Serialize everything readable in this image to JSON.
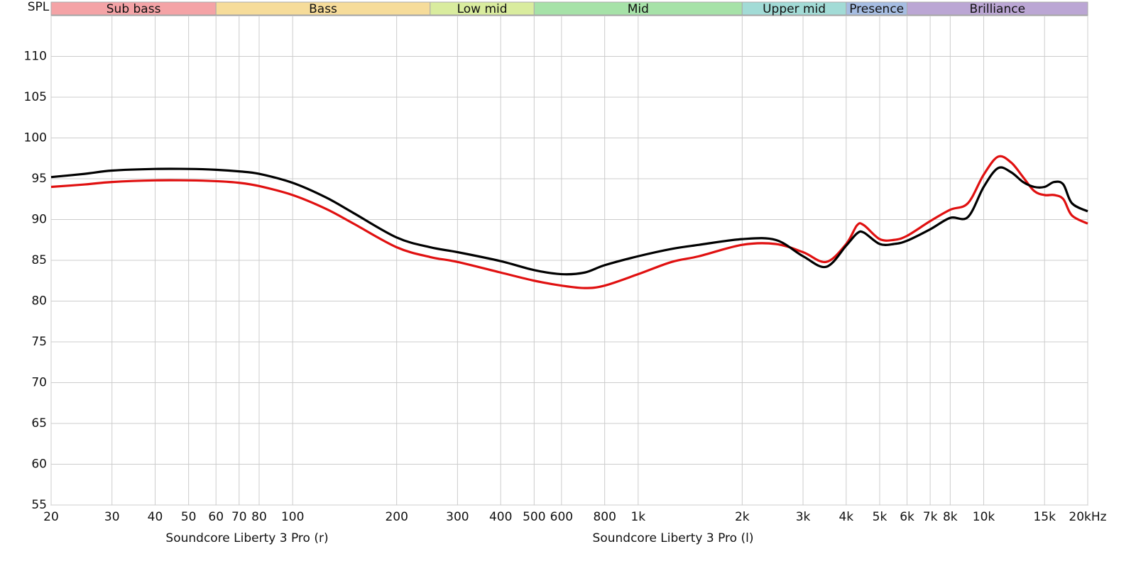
{
  "chart_data": {
    "type": "line",
    "y_label": "SPL",
    "log_x": true,
    "grid": true,
    "xlim": [
      20,
      20000
    ],
    "ylim": [
      55,
      115
    ],
    "yticks": [
      55,
      60,
      65,
      70,
      75,
      80,
      85,
      90,
      95,
      100,
      105,
      110
    ],
    "xticks": [
      20,
      30,
      40,
      50,
      60,
      70,
      80,
      100,
      200,
      300,
      400,
      500,
      600,
      800,
      {
        "value": 1000,
        "label": "1k"
      },
      {
        "value": 2000,
        "label": "2k"
      },
      {
        "value": 3000,
        "label": "3k"
      },
      {
        "value": 4000,
        "label": "4k"
      },
      {
        "value": 5000,
        "label": "5k"
      },
      {
        "value": 6000,
        "label": "6k"
      },
      {
        "value": 7000,
        "label": "7k"
      },
      {
        "value": 8000,
        "label": "8k"
      },
      {
        "value": 10000,
        "label": "10k"
      },
      {
        "value": 15000,
        "label": "15k"
      },
      {
        "value": 20000,
        "label": "20kHz"
      }
    ],
    "bands": [
      {
        "label": "Sub bass",
        "from": 20,
        "to": 60,
        "color": "#f4a3a6"
      },
      {
        "label": "Bass",
        "from": 60,
        "to": 250,
        "color": "#f6dc9a"
      },
      {
        "label": "Low mid",
        "from": 250,
        "to": 500,
        "color": "#d9ec9e"
      },
      {
        "label": "Mid",
        "from": 500,
        "to": 2000,
        "color": "#a6e2a8"
      },
      {
        "label": "Upper mid",
        "from": 2000,
        "to": 4000,
        "color": "#a2dbd6"
      },
      {
        "label": "Presence",
        "from": 4000,
        "to": 6000,
        "color": "#a6bde2"
      },
      {
        "label": "Brilliance",
        "from": 6000,
        "to": 20000,
        "color": "#bba6d4"
      }
    ],
    "x": [
      20,
      25,
      30,
      40,
      50,
      60,
      70,
      80,
      100,
      125,
      150,
      200,
      250,
      300,
      400,
      500,
      600,
      700,
      800,
      1000,
      1250,
      1500,
      2000,
      2500,
      3000,
      3500,
      4000,
      4300,
      4500,
      5000,
      5500,
      6000,
      7000,
      8000,
      9000,
      10000,
      11000,
      12000,
      13000,
      14000,
      15000,
      16000,
      17000,
      18000,
      20000
    ],
    "series": [
      {
        "name": "Soundcore Liberty 3 Pro (r)",
        "color": "#e01010",
        "values": [
          94.0,
          94.3,
          94.6,
          94.8,
          94.8,
          94.7,
          94.5,
          94.1,
          93.0,
          91.3,
          89.5,
          86.6,
          85.4,
          84.8,
          83.5,
          82.5,
          81.9,
          81.6,
          81.9,
          83.3,
          84.8,
          85.5,
          86.9,
          87.0,
          86.0,
          84.8,
          87.0,
          89.3,
          89.3,
          87.6,
          87.5,
          88.0,
          89.8,
          91.2,
          92.0,
          95.5,
          97.7,
          97.0,
          95.2,
          93.5,
          93.0,
          93.0,
          92.5,
          90.5,
          89.5
        ]
      },
      {
        "name": "Soundcore Liberty 3 Pro (l)",
        "color": "#000000",
        "values": [
          95.2,
          95.6,
          96.0,
          96.2,
          96.2,
          96.1,
          95.9,
          95.6,
          94.5,
          92.7,
          90.8,
          87.8,
          86.6,
          86.0,
          84.9,
          83.8,
          83.3,
          83.5,
          84.4,
          85.5,
          86.4,
          86.9,
          87.6,
          87.5,
          85.5,
          84.2,
          86.8,
          88.3,
          88.4,
          87.0,
          87.0,
          87.4,
          88.8,
          90.2,
          90.3,
          94.0,
          96.3,
          95.8,
          94.6,
          94.0,
          94.0,
          94.6,
          94.3,
          92.0,
          91.0
        ]
      }
    ]
  }
}
